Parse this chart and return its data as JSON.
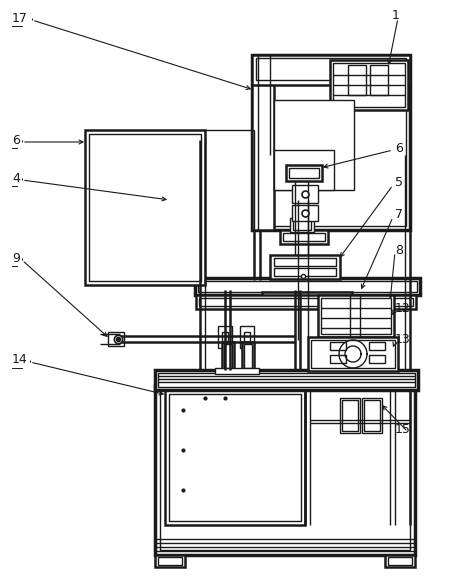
{
  "bg_color": "#ffffff",
  "line_color": "#1a1a1a",
  "lw": 1.0,
  "lw2": 1.8,
  "lw3": 2.5,
  "figsize": [
    4.52,
    5.76
  ],
  "dpi": 100
}
